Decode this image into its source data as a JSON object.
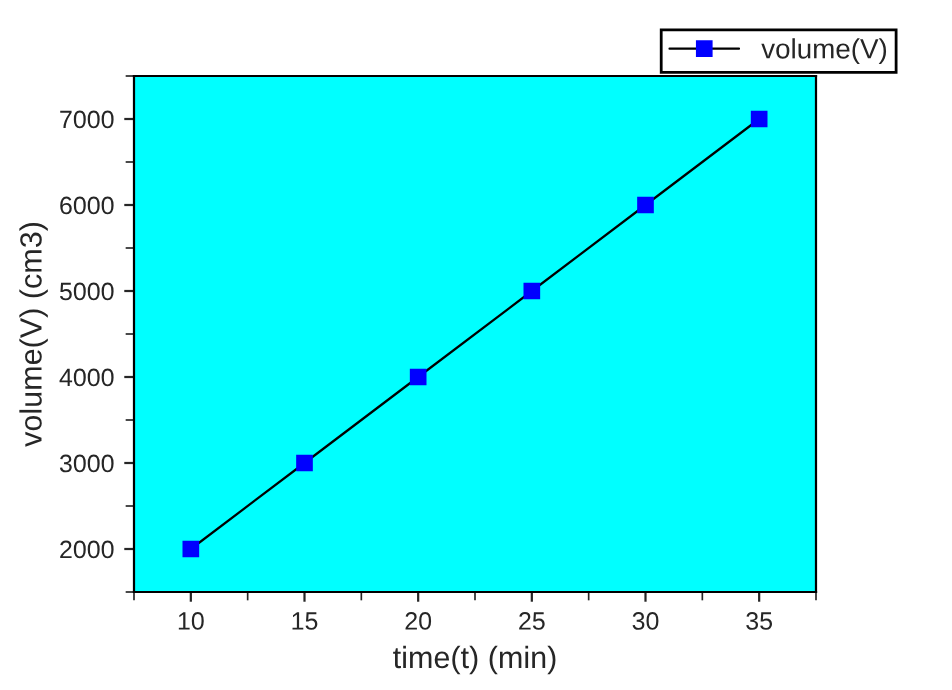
{
  "chart_data": {
    "type": "line",
    "xlabel": "time(t) (min)",
    "ylabel": "volume(V) (cm3)",
    "x": [
      10,
      15,
      20,
      25,
      30,
      35
    ],
    "series": [
      {
        "name": "volume(V)",
        "color": "#0000ff",
        "values": [
          2000,
          3000,
          4000,
          5000,
          6000,
          7000
        ]
      }
    ],
    "xlim": [
      7.5,
      37.5
    ],
    "xticks": [
      10,
      15,
      20,
      25,
      30,
      35
    ],
    "ylim": [
      1500,
      7500
    ],
    "yticks": [
      2000,
      3000,
      4000,
      5000,
      6000,
      7000
    ],
    "grid": false,
    "legend": "top right",
    "marker": "square",
    "line_style": "solid"
  }
}
